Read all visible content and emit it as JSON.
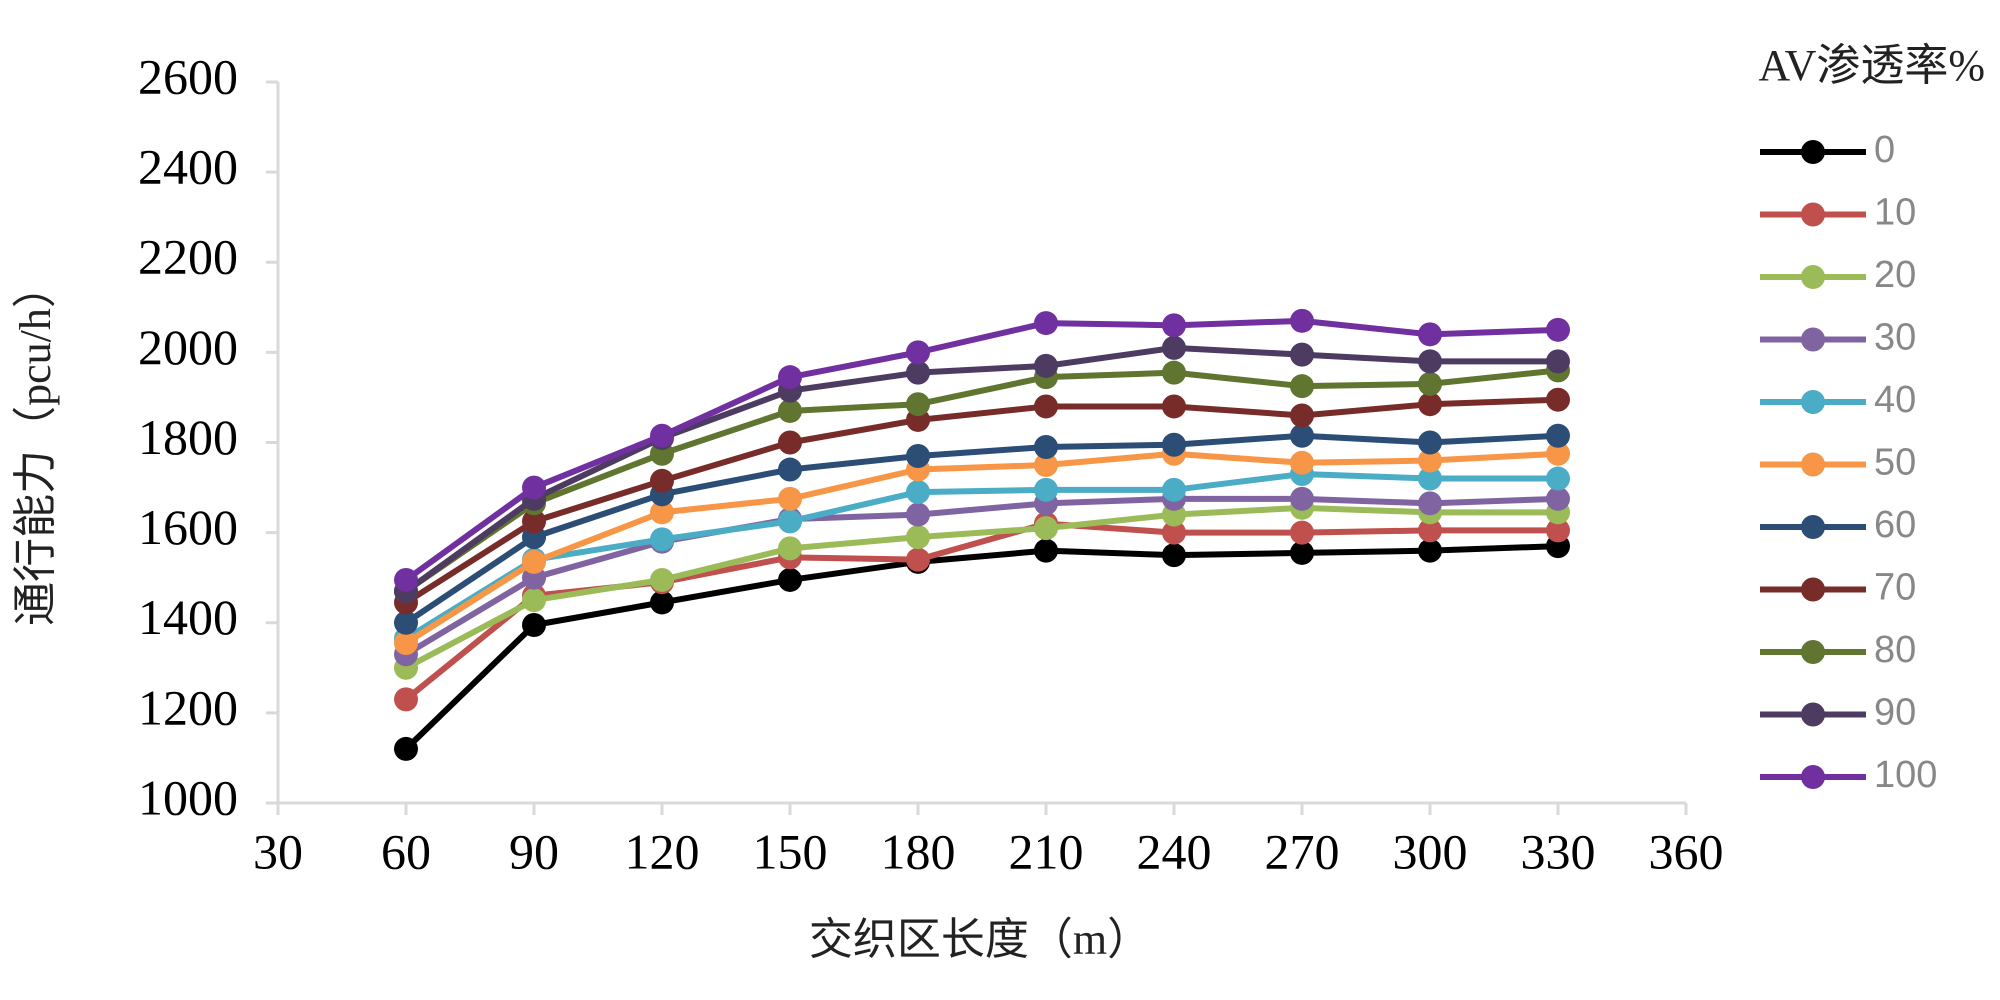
{
  "chart_data": {
    "type": "line",
    "x_label": "交织区长度（m）",
    "y_label": "通行能力（pcu/h）",
    "legend_title": "AV渗透率%",
    "x": [
      60,
      90,
      120,
      150,
      180,
      210,
      240,
      270,
      300,
      330
    ],
    "xlim": [
      30,
      360
    ],
    "xticks": [
      30,
      60,
      90,
      120,
      150,
      180,
      210,
      240,
      270,
      300,
      330,
      360
    ],
    "ylim": [
      1000,
      2600
    ],
    "yticks": [
      1000,
      1200,
      1400,
      1600,
      1800,
      2000,
      2200,
      2400,
      2600
    ],
    "grid": false,
    "legend": "right",
    "series": [
      {
        "name": "0",
        "color": "#000000",
        "values": [
          1120,
          1395,
          1445,
          1495,
          1535,
          1560,
          1550,
          1555,
          1560,
          1570
        ]
      },
      {
        "name": "10",
        "color": "#c0504d",
        "values": [
          1230,
          1460,
          1490,
          1545,
          1540,
          1620,
          1600,
          1600,
          1605,
          1605
        ]
      },
      {
        "name": "20",
        "color": "#9bbb59",
        "values": [
          1300,
          1450,
          1495,
          1565,
          1590,
          1610,
          1640,
          1655,
          1645,
          1645
        ]
      },
      {
        "name": "30",
        "color": "#8064a2",
        "values": [
          1330,
          1500,
          1580,
          1630,
          1640,
          1665,
          1675,
          1675,
          1665,
          1675
        ]
      },
      {
        "name": "40",
        "color": "#4bacc6",
        "values": [
          1365,
          1540,
          1585,
          1625,
          1690,
          1695,
          1695,
          1730,
          1720,
          1720
        ]
      },
      {
        "name": "50",
        "color": "#f79646",
        "values": [
          1355,
          1535,
          1645,
          1675,
          1740,
          1750,
          1775,
          1755,
          1760,
          1775
        ]
      },
      {
        "name": "60",
        "color": "#2c4d75",
        "values": [
          1400,
          1590,
          1685,
          1740,
          1770,
          1790,
          1795,
          1815,
          1800,
          1815
        ]
      },
      {
        "name": "70",
        "color": "#772c2a",
        "values": [
          1445,
          1625,
          1715,
          1800,
          1850,
          1880,
          1880,
          1860,
          1885,
          1895
        ]
      },
      {
        "name": "80",
        "color": "#5f7530",
        "values": [
          1470,
          1665,
          1775,
          1870,
          1885,
          1945,
          1955,
          1925,
          1930,
          1960
        ]
      },
      {
        "name": "90",
        "color": "#4d3b62",
        "values": [
          1470,
          1675,
          1810,
          1915,
          1955,
          1970,
          2010,
          1995,
          1980,
          1980
        ]
      },
      {
        "name": "100",
        "color": "#7030a0",
        "values": [
          1495,
          1700,
          1815,
          1945,
          2000,
          2065,
          2060,
          2070,
          2040,
          2050
        ]
      }
    ]
  }
}
